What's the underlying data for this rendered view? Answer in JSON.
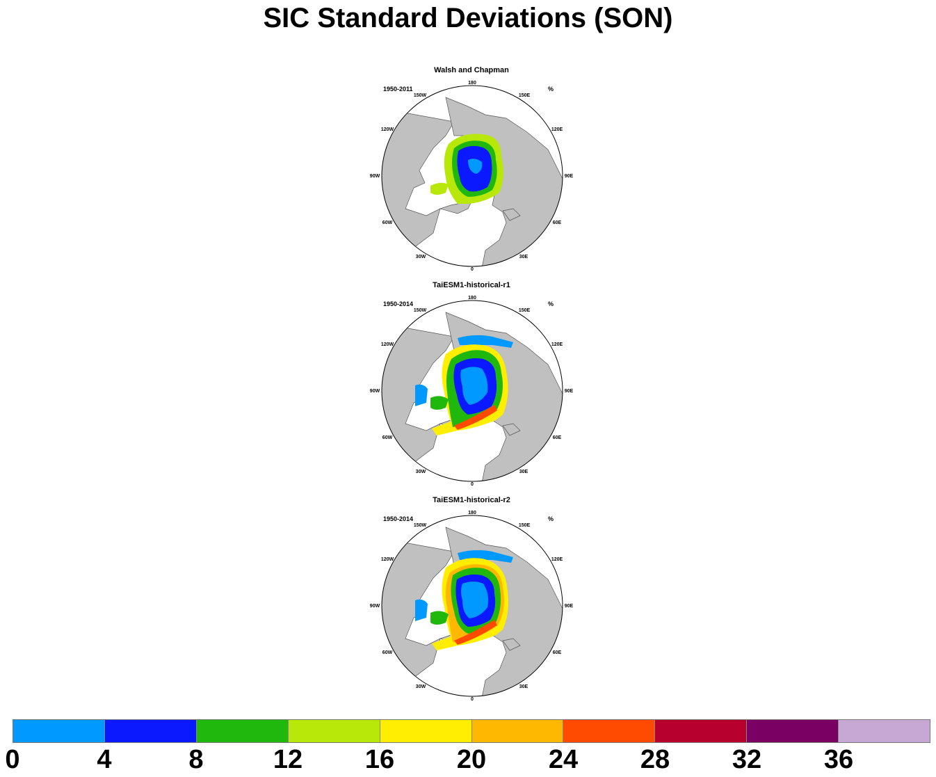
{
  "title": "SIC Standard Deviations (SON)",
  "panels": [
    {
      "title": "Walsh and Chapman",
      "period": "1950-2011",
      "units": "%"
    },
    {
      "title": "TaiESM1-historical-r1",
      "period": "1950-2014",
      "units": "%"
    },
    {
      "title": "TaiESM1-historical-r2",
      "period": "1950-2014",
      "units": "%"
    }
  ],
  "longitude_labels": {
    "180": "180",
    "150E": "150E",
    "120E": "120E",
    "90E": "90E",
    "60E": "60E",
    "30E": "30E",
    "0": "0",
    "30W": "30W",
    "60W": "60W",
    "90W": "90W",
    "120W": "120W",
    "150W": "150W"
  },
  "colorbar": {
    "colors": [
      "#0099ff",
      "#0a19ff",
      "#21b80e",
      "#b8e80a",
      "#ffee00",
      "#ffb800",
      "#ff4a00",
      "#b8002e",
      "#7a0063",
      "#c7a8d4"
    ],
    "labels": [
      "0",
      "4",
      "8",
      "12",
      "16",
      "20",
      "24",
      "28",
      "32",
      "36"
    ]
  },
  "land_color": "#c0c0c0"
}
